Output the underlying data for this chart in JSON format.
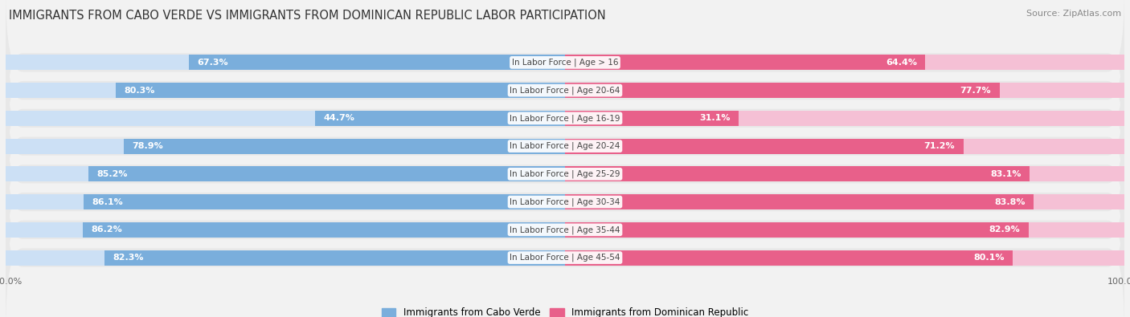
{
  "title": "IMMIGRANTS FROM CABO VERDE VS IMMIGRANTS FROM DOMINICAN REPUBLIC LABOR PARTICIPATION",
  "source": "Source: ZipAtlas.com",
  "categories": [
    "In Labor Force | Age > 16",
    "In Labor Force | Age 20-64",
    "In Labor Force | Age 16-19",
    "In Labor Force | Age 20-24",
    "In Labor Force | Age 25-29",
    "In Labor Force | Age 30-34",
    "In Labor Force | Age 35-44",
    "In Labor Force | Age 45-54"
  ],
  "cabo_verde_values": [
    67.3,
    80.3,
    44.7,
    78.9,
    85.2,
    86.1,
    86.2,
    82.3
  ],
  "dominican_rep_values": [
    64.4,
    77.7,
    31.1,
    71.2,
    83.1,
    83.8,
    82.9,
    80.1
  ],
  "cabo_verde_color": "#7aaedc",
  "cabo_verde_light_color": "#cce0f5",
  "dominican_rep_color": "#e8608a",
  "dominican_rep_light_color": "#f5c0d5",
  "row_bg_color": "#e8e8e8",
  "label_white": "#ffffff",
  "label_dark": "#666666",
  "background_color": "#f2f2f2",
  "legend_cabo": "Immigrants from Cabo Verde",
  "legend_dom": "Immigrants from Dominican Republic",
  "max_value": 100.0,
  "bar_height": 0.55,
  "title_fontsize": 10.5,
  "label_fontsize": 8,
  "category_fontsize": 7.5,
  "legend_fontsize": 8.5,
  "source_fontsize": 8
}
